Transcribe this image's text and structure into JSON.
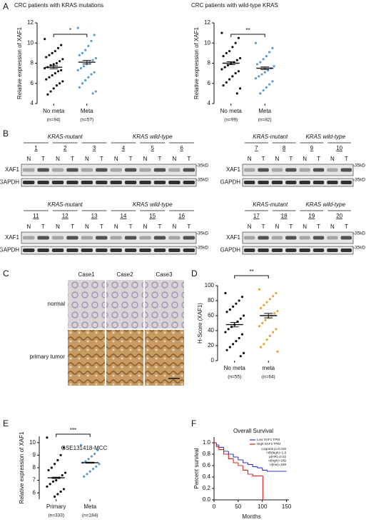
{
  "blot_panel": {
    "panel": "B",
    "lanes": [
      "N",
      "T"
    ],
    "marker": "35kD",
    "rows": [
      "XAF1",
      "GAPDH"
    ],
    "blots": [
      {
        "groups": [
          {
            "label": "KRAS-mutant",
            "samples": [
              "1",
              "2",
              "3"
            ]
          },
          {
            "label": "KRAS wild-type",
            "samples": [
              "4",
              "5",
              "6"
            ]
          }
        ]
      },
      {
        "groups": [
          {
            "label": "KRAS-mutant",
            "samples": [
              "7",
              "8"
            ]
          },
          {
            "label": "KRAS wild-type",
            "samples": [
              "9",
              "10"
            ]
          }
        ]
      },
      {
        "groups": [
          {
            "label": "KRAS-mutant",
            "samples": [
              "11",
              "12",
              "13"
            ]
          },
          {
            "label": "KRAS wild-type",
            "samples": [
              "14",
              "15",
              "16"
            ]
          }
        ]
      },
      {
        "groups": [
          {
            "label": "KRAS-mutant",
            "samples": [
              "17",
              "18"
            ]
          },
          {
            "label": "KRAS wild-type",
            "samples": [
              "19",
              "20"
            ]
          }
        ]
      }
    ]
  },
  "ihc_panel": {
    "panel": "C",
    "cases": [
      "Case1",
      "Case2",
      "Case3"
    ],
    "rows": [
      "normal",
      "primary tumor"
    ]
  },
  "chart_data": [
    {
      "type": "dotplot",
      "panel": "A",
      "title": "CRC patients with KRAS mutations",
      "ylabel": "Relative expression of XAF1",
      "ylim": [
        4,
        12
      ],
      "yticks": [
        4,
        6,
        8,
        10,
        12
      ],
      "significance": "*",
      "series": [
        {
          "name": "No meta",
          "count_label": "(n=94)",
          "color": "#111111",
          "mean": 7.6,
          "sem": 0.15,
          "values": [
            10.4,
            9.8,
            9.5,
            9.2,
            9.0,
            8.8,
            8.6,
            8.4,
            8.2,
            8.0,
            7.9,
            7.8,
            7.6,
            7.5,
            7.3,
            7.2,
            7.0,
            6.8,
            6.6,
            6.4,
            6.2,
            6.0,
            5.8,
            5.5,
            5.2,
            4.9
          ]
        },
        {
          "name": "Meta",
          "count_label": "(n=57)",
          "color": "#5b9bd5",
          "mean": 8.1,
          "sem": 0.18,
          "values": [
            11.5,
            10.8,
            10.2,
            9.7,
            9.3,
            9.0,
            8.8,
            8.5,
            8.3,
            8.1,
            7.9,
            7.7,
            7.5,
            7.3,
            7.1,
            6.9,
            6.6,
            6.3,
            6.0,
            5.6,
            5.2,
            5.0
          ]
        }
      ]
    },
    {
      "type": "dotplot",
      "title": "CRC patients with wild-type KRAS",
      "ylabel": "Relative expression of XAF1",
      "ylim": [
        4,
        12
      ],
      "yticks": [
        4,
        6,
        8,
        10,
        12
      ],
      "significance": "**",
      "series": [
        {
          "name": "No meta",
          "count_label": "(n=99)",
          "color": "#111111",
          "mean": 8.0,
          "sem": 0.14,
          "values": [
            11.0,
            10.5,
            10.0,
            9.6,
            9.2,
            9.0,
            8.7,
            8.5,
            8.3,
            8.1,
            8.0,
            7.8,
            7.6,
            7.4,
            7.2,
            7.0,
            6.7,
            6.4,
            6.1,
            5.8,
            5.5,
            5.0
          ]
        },
        {
          "name": "Meta",
          "count_label": "(n=82)",
          "color": "#5b9bd5",
          "mean": 7.5,
          "sem": 0.13,
          "values": [
            10.0,
            9.5,
            9.1,
            8.7,
            8.4,
            8.1,
            7.9,
            7.7,
            7.5,
            7.3,
            7.1,
            6.9,
            6.7,
            6.5,
            6.2,
            5.9,
            5.6,
            5.3,
            5.0
          ]
        }
      ]
    },
    {
      "type": "dotplot",
      "panel": "D",
      "ylabel": "H-Score (XAF1)",
      "ylim": [
        0,
        100
      ],
      "yticks": [
        0,
        20,
        40,
        60,
        80,
        100
      ],
      "significance": "**",
      "series": [
        {
          "name": "No meta",
          "count_label": "(n=55)",
          "color": "#111111",
          "mean": 48,
          "sem": 3,
          "values": [
            90,
            85,
            80,
            76,
            72,
            68,
            65,
            60,
            56,
            52,
            48,
            45,
            42,
            38,
            35,
            30,
            26,
            22,
            18,
            14,
            10,
            6
          ]
        },
        {
          "name": "meta",
          "count_label": "(n=64)",
          "color": "#e8a33c",
          "mean": 60,
          "sem": 3,
          "values": [
            95,
            90,
            86,
            82,
            78,
            74,
            70,
            66,
            63,
            60,
            57,
            54,
            50,
            46,
            42,
            38,
            33,
            28,
            22,
            18,
            12
          ]
        }
      ]
    },
    {
      "type": "dotplot",
      "panel": "E",
      "ylabel": "Relative expression of XAF1",
      "annotation": "GSE131418-MCC",
      "ylim": [
        5.5,
        10.5
      ],
      "yticks": [
        6,
        7,
        8,
        9,
        10
      ],
      "significance": "***",
      "series": [
        {
          "name": "Primary",
          "count_label": "(n=333)",
          "color": "#111111",
          "mean": 7.2,
          "sem": 0.05,
          "values": [
            10.4,
            9.6,
            9.0,
            8.6,
            8.3,
            8.0,
            7.8,
            7.6,
            7.4,
            7.2,
            7.0,
            6.9,
            6.7,
            6.5,
            6.3,
            6.1,
            5.9,
            5.7
          ]
        },
        {
          "name": "Meta",
          "count_label": "(n=184)",
          "color": "#5b9bd5",
          "mean": 8.4,
          "sem": 0.04,
          "values": [
            9.8,
            9.4,
            9.1,
            8.9,
            8.7,
            8.5,
            8.4,
            8.3,
            8.1,
            7.9,
            7.7,
            7.5,
            7.3
          ]
        }
      ]
    },
    {
      "type": "survival",
      "panel": "F",
      "title": "Overall Survival",
      "xlabel": "Months",
      "ylabel": "Percent survival",
      "xlim": [
        0,
        155
      ],
      "xticks": [
        0,
        50,
        100,
        150
      ],
      "ylim": [
        0,
        1.1
      ],
      "yticks": [
        {
          "value": 0,
          "label": "0.0"
        },
        0.2,
        0.4,
        0.6,
        0.8,
        {
          "value": 1,
          "label": "1.0"
        }
      ],
      "stats": [
        "Logrank p=0.019",
        "HR(high)=1.8",
        "p(HR)=0.02",
        "n(high)=189",
        "n(low)=189"
      ],
      "series": [
        {
          "name": "Low XAF1 TPM",
          "color": "#3333cc",
          "x": [
            0,
            5,
            10,
            20,
            30,
            40,
            50,
            60,
            70,
            80,
            90,
            100,
            110,
            120,
            150
          ],
          "values": [
            1,
            0.96,
            0.92,
            0.85,
            0.8,
            0.75,
            0.7,
            0.65,
            0.62,
            0.58,
            0.56,
            0.52,
            0.5,
            0.5,
            0.5
          ]
        },
        {
          "name": "High XAF1 TPM",
          "color": "#e02020",
          "x": [
            0,
            5,
            10,
            20,
            30,
            40,
            50,
            60,
            70,
            80,
            90,
            100,
            101
          ],
          "values": [
            1,
            0.93,
            0.88,
            0.8,
            0.72,
            0.65,
            0.6,
            0.52,
            0.45,
            0.42,
            0.42,
            0.42,
            0
          ]
        }
      ]
    }
  ]
}
